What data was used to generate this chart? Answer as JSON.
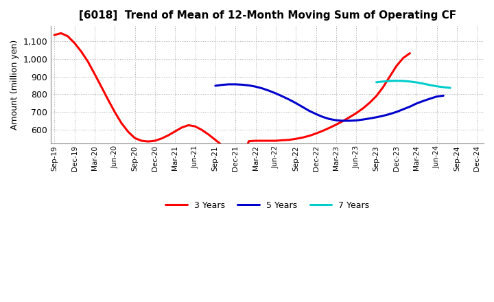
{
  "title": "[6018]  Trend of Mean of 12-Month Moving Sum of Operating CF",
  "ylabel": "Amount (million yen)",
  "background_color": "#ffffff",
  "grid_color": "#999999",
  "ylim": [
    520,
    1185
  ],
  "yticks": [
    600,
    700,
    800,
    900,
    1000,
    1100
  ],
  "series": {
    "3yr": {
      "color": "#ff0000",
      "label": "3 Years",
      "x": [
        0,
        1,
        2,
        3,
        4,
        5,
        6,
        7,
        8,
        9,
        10,
        11,
        12,
        13,
        14,
        15,
        16,
        17,
        18,
        19,
        20,
        21,
        22,
        23,
        24,
        25,
        26,
        27,
        28,
        29,
        30,
        31,
        32,
        33,
        34,
        35,
        36,
        37,
        38,
        39,
        40,
        41,
        42,
        43,
        44,
        45,
        46,
        47,
        48,
        49,
        50,
        51,
        52,
        53,
        54,
        55,
        56,
        57,
        58,
        59,
        60
      ],
      "y": [
        1135,
        1145,
        1128,
        1090,
        1042,
        985,
        915,
        843,
        770,
        700,
        637,
        588,
        552,
        537,
        533,
        537,
        550,
        568,
        590,
        612,
        625,
        618,
        598,
        572,
        542,
        512,
        485,
        462,
        445,
        535,
        537,
        537,
        537,
        537,
        540,
        542,
        548,
        555,
        565,
        578,
        593,
        610,
        628,
        648,
        670,
        693,
        720,
        752,
        790,
        840,
        900,
        960,
        1005,
        1032,
        null,
        null,
        null,
        null,
        null,
        null,
        null
      ]
    },
    "5yr": {
      "color": "#0000cc",
      "label": "5 Years",
      "x": [
        24,
        25,
        26,
        27,
        28,
        29,
        30,
        31,
        32,
        33,
        34,
        35,
        36,
        37,
        38,
        39,
        40,
        41,
        42,
        43,
        44,
        45,
        46,
        47,
        48,
        49,
        50,
        51,
        52,
        53,
        54,
        55,
        56,
        57,
        58,
        59,
        60
      ],
      "y": [
        848,
        853,
        856,
        856,
        854,
        850,
        843,
        833,
        820,
        805,
        788,
        770,
        750,
        728,
        706,
        688,
        672,
        660,
        653,
        650,
        650,
        652,
        657,
        663,
        670,
        678,
        688,
        700,
        715,
        730,
        748,
        762,
        775,
        787,
        792,
        null,
        null
      ]
    },
    "7yr": {
      "color": "#00cccc",
      "label": "7 Years",
      "x": [
        48,
        49,
        50,
        51,
        52,
        53,
        54,
        55,
        56,
        57,
        58,
        59,
        60
      ],
      "y": [
        868,
        872,
        875,
        876,
        875,
        872,
        867,
        860,
        852,
        845,
        840,
        836,
        null
      ]
    },
    "10yr": {
      "color": "#008000",
      "x": [
        60
      ],
      "y": [
        null
      ]
    }
  },
  "xtick_labels": [
    "Sep-19",
    "Dec-19",
    "Mar-20",
    "Jun-20",
    "Sep-20",
    "Dec-20",
    "Mar-21",
    "Jun-21",
    "Sep-21",
    "Dec-21",
    "Mar-22",
    "Jun-22",
    "Sep-22",
    "Dec-22",
    "Mar-23",
    "Jun-23",
    "Sep-23",
    "Dec-23",
    "Mar-24",
    "Jun-24",
    "Sep-24",
    "Dec-24"
  ],
  "xtick_positions": [
    0,
    3,
    6,
    9,
    12,
    15,
    18,
    21,
    24,
    27,
    30,
    33,
    36,
    39,
    42,
    45,
    48,
    51,
    54,
    57,
    60,
    63
  ]
}
